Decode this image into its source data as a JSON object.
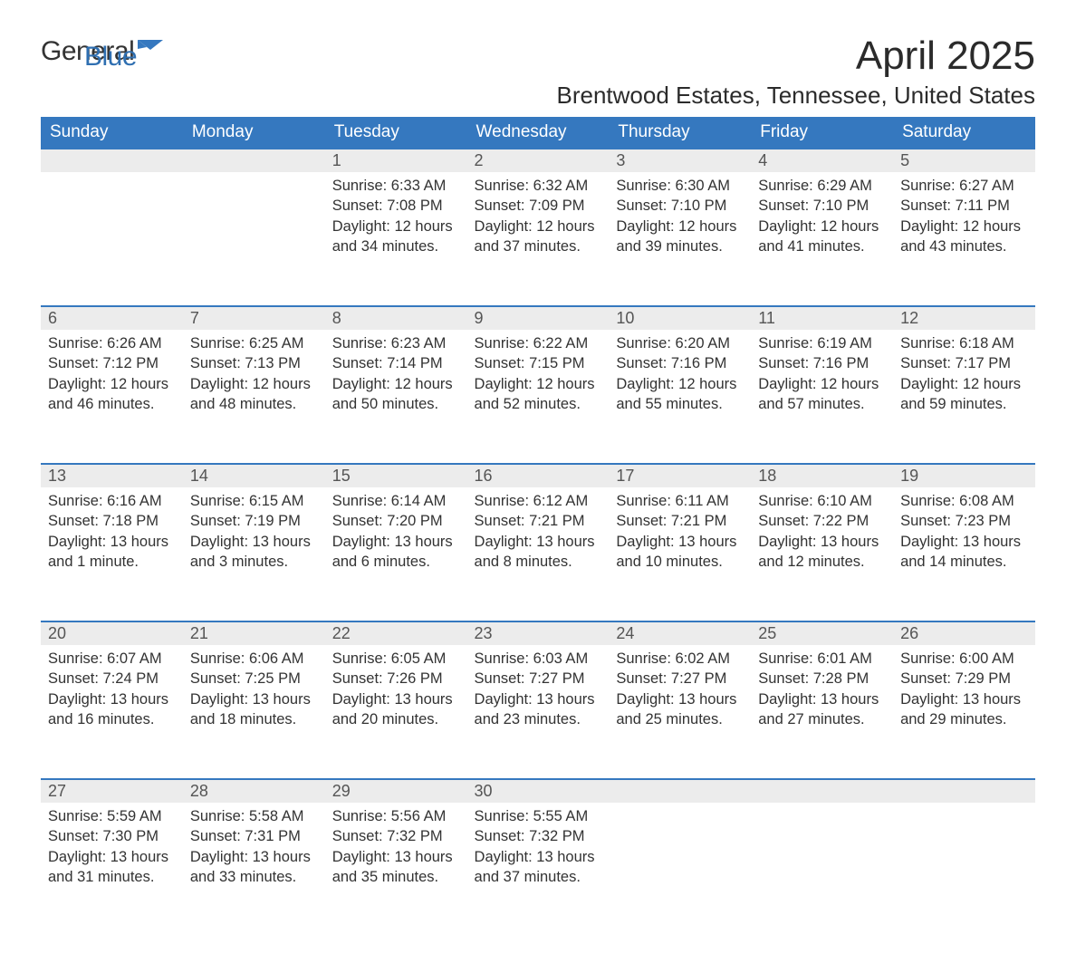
{
  "logo": {
    "word1": "General",
    "word2": "Blue"
  },
  "title": "April 2025",
  "subtitle": "Brentwood Estates, Tennessee, United States",
  "colors": {
    "header_bg": "#3578bf",
    "header_fg": "#ffffff",
    "daynum_bg": "#ececec",
    "border_top": "#3578bf",
    "text": "#333333",
    "logo_accent": "#2f6fb1"
  },
  "day_headers": [
    "Sunday",
    "Monday",
    "Tuesday",
    "Wednesday",
    "Thursday",
    "Friday",
    "Saturday"
  ],
  "weeks": [
    [
      null,
      null,
      {
        "n": "1",
        "sr": "6:33 AM",
        "ss": "7:08 PM",
        "dl": "12 hours and 34 minutes."
      },
      {
        "n": "2",
        "sr": "6:32 AM",
        "ss": "7:09 PM",
        "dl": "12 hours and 37 minutes."
      },
      {
        "n": "3",
        "sr": "6:30 AM",
        "ss": "7:10 PM",
        "dl": "12 hours and 39 minutes."
      },
      {
        "n": "4",
        "sr": "6:29 AM",
        "ss": "7:10 PM",
        "dl": "12 hours and 41 minutes."
      },
      {
        "n": "5",
        "sr": "6:27 AM",
        "ss": "7:11 PM",
        "dl": "12 hours and 43 minutes."
      }
    ],
    [
      {
        "n": "6",
        "sr": "6:26 AM",
        "ss": "7:12 PM",
        "dl": "12 hours and 46 minutes."
      },
      {
        "n": "7",
        "sr": "6:25 AM",
        "ss": "7:13 PM",
        "dl": "12 hours and 48 minutes."
      },
      {
        "n": "8",
        "sr": "6:23 AM",
        "ss": "7:14 PM",
        "dl": "12 hours and 50 minutes."
      },
      {
        "n": "9",
        "sr": "6:22 AM",
        "ss": "7:15 PM",
        "dl": "12 hours and 52 minutes."
      },
      {
        "n": "10",
        "sr": "6:20 AM",
        "ss": "7:16 PM",
        "dl": "12 hours and 55 minutes."
      },
      {
        "n": "11",
        "sr": "6:19 AM",
        "ss": "7:16 PM",
        "dl": "12 hours and 57 minutes."
      },
      {
        "n": "12",
        "sr": "6:18 AM",
        "ss": "7:17 PM",
        "dl": "12 hours and 59 minutes."
      }
    ],
    [
      {
        "n": "13",
        "sr": "6:16 AM",
        "ss": "7:18 PM",
        "dl": "13 hours and 1 minute."
      },
      {
        "n": "14",
        "sr": "6:15 AM",
        "ss": "7:19 PM",
        "dl": "13 hours and 3 minutes."
      },
      {
        "n": "15",
        "sr": "6:14 AM",
        "ss": "7:20 PM",
        "dl": "13 hours and 6 minutes."
      },
      {
        "n": "16",
        "sr": "6:12 AM",
        "ss": "7:21 PM",
        "dl": "13 hours and 8 minutes."
      },
      {
        "n": "17",
        "sr": "6:11 AM",
        "ss": "7:21 PM",
        "dl": "13 hours and 10 minutes."
      },
      {
        "n": "18",
        "sr": "6:10 AM",
        "ss": "7:22 PM",
        "dl": "13 hours and 12 minutes."
      },
      {
        "n": "19",
        "sr": "6:08 AM",
        "ss": "7:23 PM",
        "dl": "13 hours and 14 minutes."
      }
    ],
    [
      {
        "n": "20",
        "sr": "6:07 AM",
        "ss": "7:24 PM",
        "dl": "13 hours and 16 minutes."
      },
      {
        "n": "21",
        "sr": "6:06 AM",
        "ss": "7:25 PM",
        "dl": "13 hours and 18 minutes."
      },
      {
        "n": "22",
        "sr": "6:05 AM",
        "ss": "7:26 PM",
        "dl": "13 hours and 20 minutes."
      },
      {
        "n": "23",
        "sr": "6:03 AM",
        "ss": "7:27 PM",
        "dl": "13 hours and 23 minutes."
      },
      {
        "n": "24",
        "sr": "6:02 AM",
        "ss": "7:27 PM",
        "dl": "13 hours and 25 minutes."
      },
      {
        "n": "25",
        "sr": "6:01 AM",
        "ss": "7:28 PM",
        "dl": "13 hours and 27 minutes."
      },
      {
        "n": "26",
        "sr": "6:00 AM",
        "ss": "7:29 PM",
        "dl": "13 hours and 29 minutes."
      }
    ],
    [
      {
        "n": "27",
        "sr": "5:59 AM",
        "ss": "7:30 PM",
        "dl": "13 hours and 31 minutes."
      },
      {
        "n": "28",
        "sr": "5:58 AM",
        "ss": "7:31 PM",
        "dl": "13 hours and 33 minutes."
      },
      {
        "n": "29",
        "sr": "5:56 AM",
        "ss": "7:32 PM",
        "dl": "13 hours and 35 minutes."
      },
      {
        "n": "30",
        "sr": "5:55 AM",
        "ss": "7:32 PM",
        "dl": "13 hours and 37 minutes."
      },
      null,
      null,
      null
    ]
  ],
  "labels": {
    "sunrise": "Sunrise: ",
    "sunset": "Sunset: ",
    "daylight": "Daylight: "
  }
}
